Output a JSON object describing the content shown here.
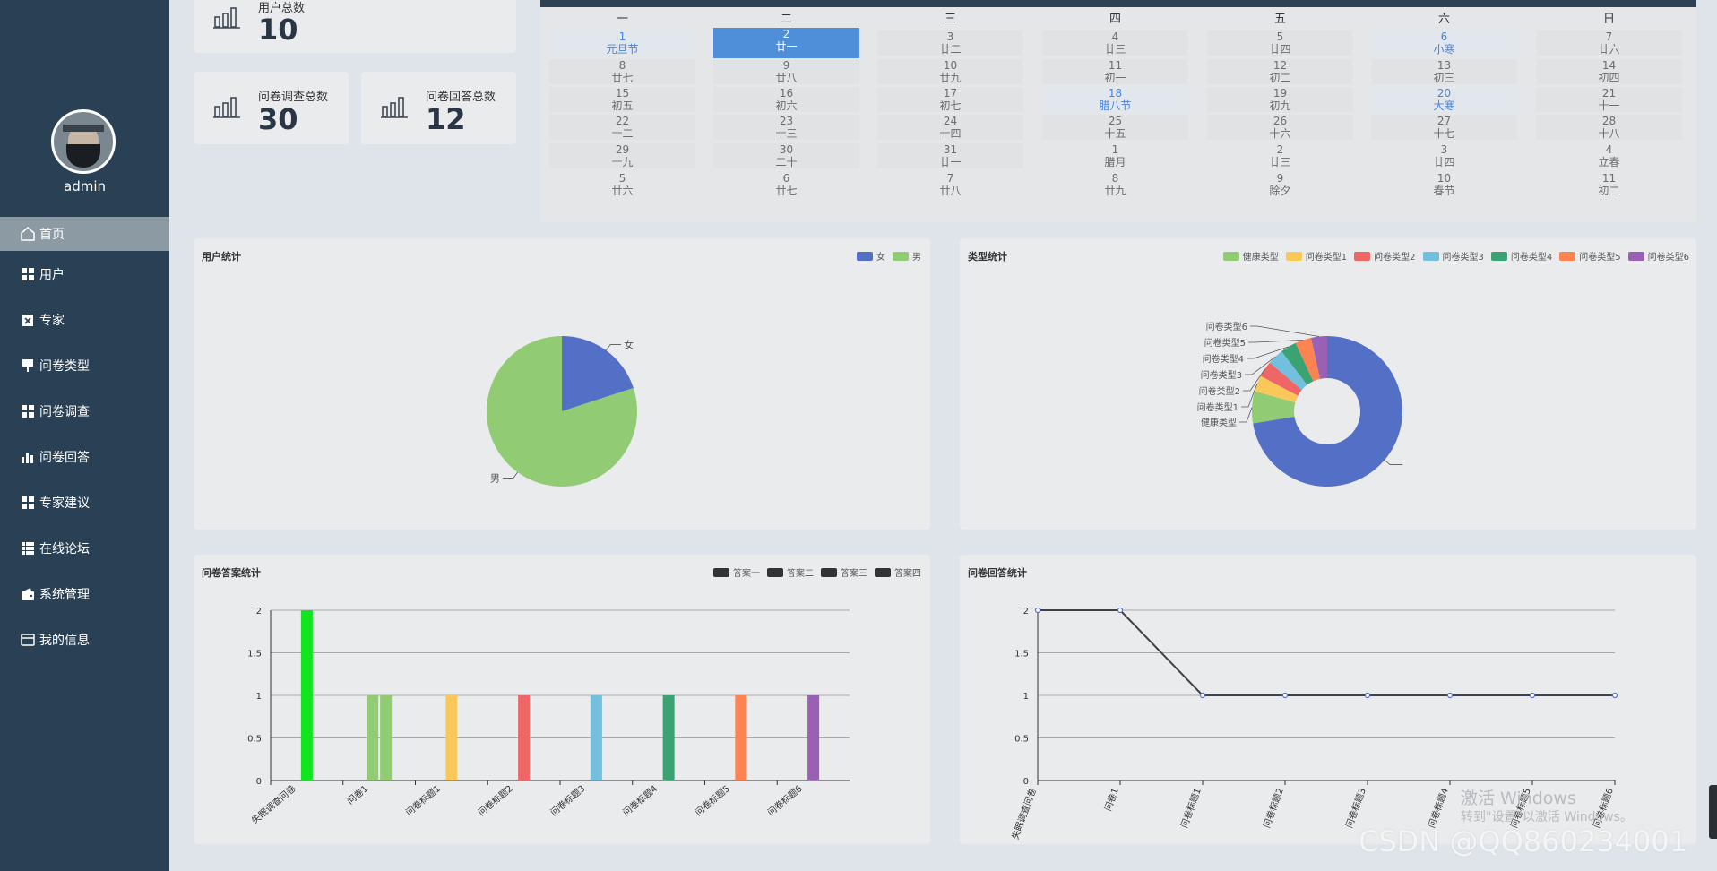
{
  "sidebar": {
    "username": "admin",
    "items": [
      {
        "label": "首页",
        "icon": "home-icon",
        "active": true
      },
      {
        "label": "用户",
        "icon": "grid-icon"
      },
      {
        "label": "专家",
        "icon": "clipboard-icon"
      },
      {
        "label": "问卷类型",
        "icon": "pin-icon"
      },
      {
        "label": "问卷调查",
        "icon": "grid-icon"
      },
      {
        "label": "问卷回答",
        "icon": "bar-chart-icon"
      },
      {
        "label": "专家建议",
        "icon": "grid-icon"
      },
      {
        "label": "在线论坛",
        "icon": "apps-icon"
      },
      {
        "label": "系统管理",
        "icon": "wallet-icon"
      },
      {
        "label": "我的信息",
        "icon": "card-icon"
      }
    ]
  },
  "stats": {
    "users": {
      "label": "用户总数",
      "value": "10"
    },
    "surveys": {
      "label": "问卷调查总数",
      "value": "30"
    },
    "answers": {
      "label": "问卷回答总数",
      "value": "12"
    }
  },
  "calendar": {
    "weekdays": [
      "一",
      "二",
      "三",
      "四",
      "五",
      "六",
      "日"
    ],
    "rows": [
      [
        {
          "d": "1",
          "l": "元旦节",
          "t": "fest"
        },
        {
          "d": "2",
          "l": "廿一",
          "t": "today"
        },
        {
          "d": "3",
          "l": "廿二",
          "t": "in"
        },
        {
          "d": "4",
          "l": "廿三",
          "t": "in"
        },
        {
          "d": "5",
          "l": "廿四",
          "t": "in"
        },
        {
          "d": "6",
          "l": "小寒",
          "t": "fest"
        },
        {
          "d": "7",
          "l": "廿六",
          "t": "in"
        }
      ],
      [
        {
          "d": "8",
          "l": "廿七",
          "t": "in"
        },
        {
          "d": "9",
          "l": "廿八",
          "t": "in"
        },
        {
          "d": "10",
          "l": "廿九",
          "t": "in"
        },
        {
          "d": "11",
          "l": "初一",
          "t": "in"
        },
        {
          "d": "12",
          "l": "初二",
          "t": "in"
        },
        {
          "d": "13",
          "l": "初三",
          "t": "in"
        },
        {
          "d": "14",
          "l": "初四",
          "t": "in"
        }
      ],
      [
        {
          "d": "15",
          "l": "初五",
          "t": "in"
        },
        {
          "d": "16",
          "l": "初六",
          "t": "in"
        },
        {
          "d": "17",
          "l": "初七",
          "t": "in"
        },
        {
          "d": "18",
          "l": "腊八节",
          "t": "fest"
        },
        {
          "d": "19",
          "l": "初九",
          "t": "in"
        },
        {
          "d": "20",
          "l": "大寒",
          "t": "fest"
        },
        {
          "d": "21",
          "l": "十一",
          "t": "in"
        }
      ],
      [
        {
          "d": "22",
          "l": "十二",
          "t": "in"
        },
        {
          "d": "23",
          "l": "十三",
          "t": "in"
        },
        {
          "d": "24",
          "l": "十四",
          "t": "in"
        },
        {
          "d": "25",
          "l": "十五",
          "t": "in"
        },
        {
          "d": "26",
          "l": "十六",
          "t": "in"
        },
        {
          "d": "27",
          "l": "十七",
          "t": "in"
        },
        {
          "d": "28",
          "l": "十八",
          "t": "in"
        }
      ],
      [
        {
          "d": "29",
          "l": "十九",
          "t": "in"
        },
        {
          "d": "30",
          "l": "二十",
          "t": "in"
        },
        {
          "d": "31",
          "l": "廿一",
          "t": "in"
        },
        {
          "d": "1",
          "l": "腊月",
          "t": "other"
        },
        {
          "d": "2",
          "l": "廿三",
          "t": "other"
        },
        {
          "d": "3",
          "l": "廿四",
          "t": "other"
        },
        {
          "d": "4",
          "l": "立春",
          "t": "other"
        }
      ],
      [
        {
          "d": "5",
          "l": "廿六",
          "t": "other"
        },
        {
          "d": "6",
          "l": "廿七",
          "t": "other"
        },
        {
          "d": "7",
          "l": "廿八",
          "t": "other"
        },
        {
          "d": "8",
          "l": "廿九",
          "t": "other"
        },
        {
          "d": "9",
          "l": "除夕",
          "t": "other"
        },
        {
          "d": "10",
          "l": "春节",
          "t": "other"
        },
        {
          "d": "11",
          "l": "初二",
          "t": "other"
        }
      ]
    ]
  },
  "panels": {
    "user_stats": "用户统计",
    "type_stats": "类型统计",
    "answer_stats": "问卷答案统计",
    "reply_stats": "问卷回答统计"
  },
  "chart_data": [
    {
      "type": "pie",
      "title": "用户统计",
      "labels": [
        "女",
        "男"
      ],
      "values": [
        2,
        8
      ],
      "colors": [
        "#5470c6",
        "#91cc75"
      ]
    },
    {
      "type": "pie",
      "title": "类型统计",
      "donut": true,
      "labels": [
        "健康类型",
        "问卷类型1",
        "问卷类型2",
        "问卷类型3",
        "问卷类型4",
        "问卷类型5",
        "问卷类型6"
      ],
      "values": [
        2,
        1,
        1,
        1,
        1,
        1,
        1
      ],
      "unlabeled_remainder": 21,
      "colors": [
        "#91cc75",
        "#fac858",
        "#ee6666",
        "#73c0de",
        "#3ba272",
        "#fc8452",
        "#9a60b4"
      ],
      "remainder_color": "#5470c6"
    },
    {
      "type": "bar",
      "title": "问卷答案统计",
      "legend": [
        "答案一",
        "答案二",
        "答案三",
        "答案四"
      ],
      "legend_color": "#333333",
      "categories": [
        "失眠调查问卷",
        "问卷1",
        "问卷标题1",
        "问卷标题2",
        "问卷标题3",
        "问卷标题4",
        "问卷标题5",
        "问卷标题6"
      ],
      "bars": [
        {
          "category": 0,
          "value": 2,
          "color": "#11e51d"
        },
        {
          "category": 1,
          "value": 1,
          "color": "#91cc75"
        },
        {
          "category": 1,
          "value": 1,
          "color": "#91cc75"
        },
        {
          "category": 2,
          "value": 1,
          "color": "#fac858"
        },
        {
          "category": 3,
          "value": 1,
          "color": "#ee6666"
        },
        {
          "category": 4,
          "value": 1,
          "color": "#73c0de"
        },
        {
          "category": 5,
          "value": 1,
          "color": "#3ba272"
        },
        {
          "category": 6,
          "value": 1,
          "color": "#fc8452"
        },
        {
          "category": 7,
          "value": 1,
          "color": "#9a60b4"
        }
      ],
      "yticks": [
        "0",
        "0.5",
        "1",
        "1.5",
        "2"
      ],
      "ylim": [
        0,
        2
      ]
    },
    {
      "type": "line",
      "title": "问卷回答统计",
      "categories": [
        "失眠调查问卷",
        "问卷1",
        "问卷标题1",
        "问卷标题2",
        "问卷标题3",
        "问卷标题4",
        "问卷标题5",
        "问卷标题6"
      ],
      "values": [
        2,
        2,
        1,
        1,
        1,
        1,
        1,
        1
      ],
      "yticks": [
        "0",
        "0.5",
        "1",
        "1.5",
        "2"
      ],
      "ylim": [
        0,
        2
      ]
    }
  ],
  "watermark": {
    "line1": "激活 Windows",
    "line2": "转到\"设置\"以激活 Windows。",
    "csdn": "CSDN @QQ860234001"
  }
}
